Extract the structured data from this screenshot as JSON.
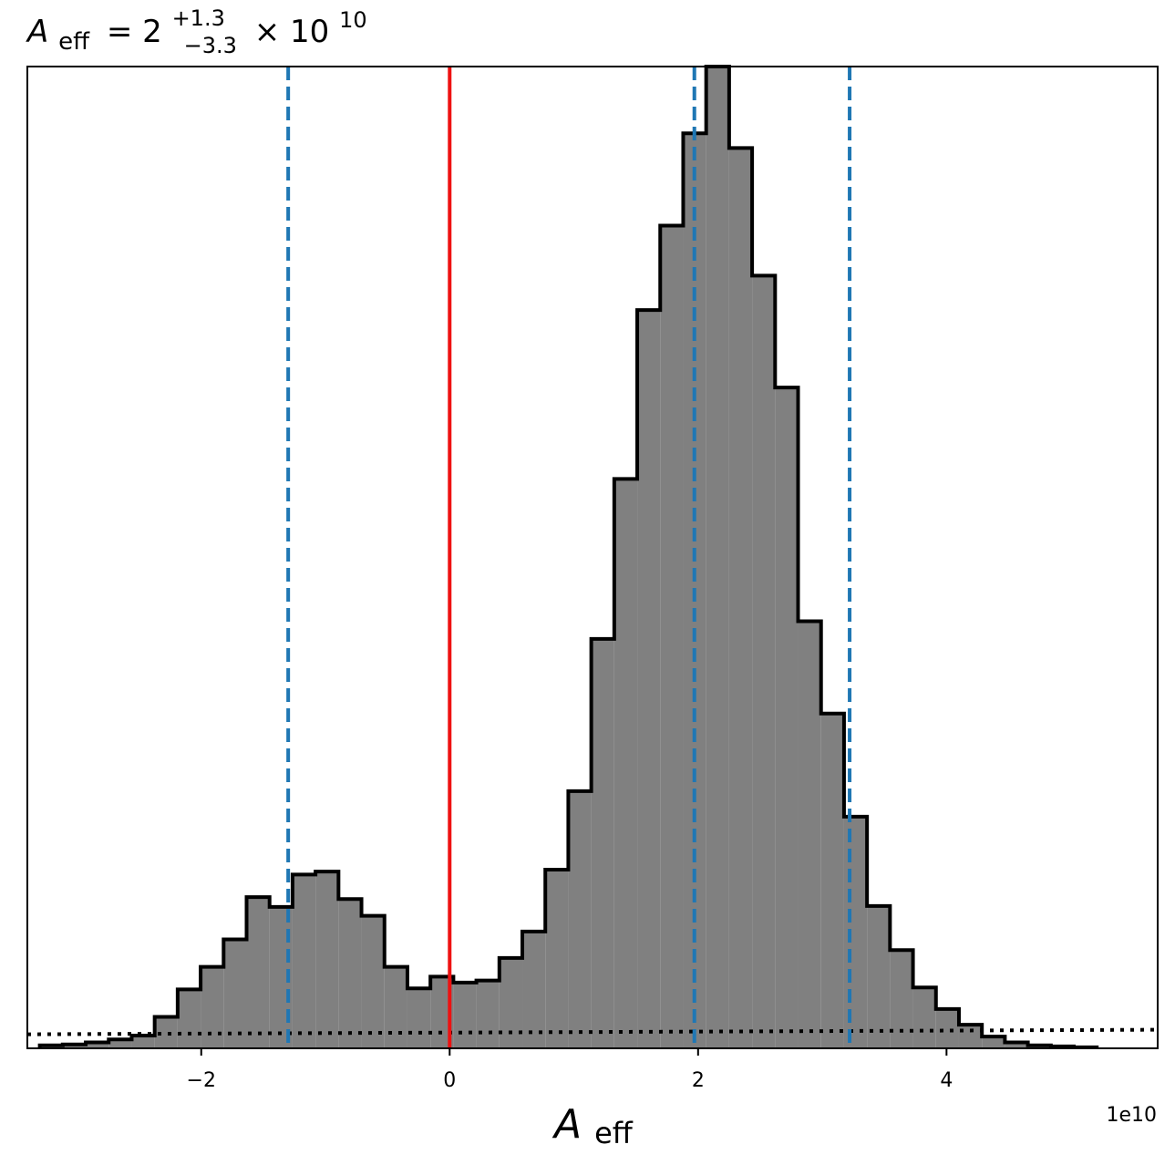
{
  "chart_data": {
    "type": "histogram",
    "title": {
      "symbol": "A",
      "subscript": "eff",
      "equals": "= 2",
      "upper": "+1.3",
      "lower": "−3.3",
      "times": "× 10",
      "exponent": "10"
    },
    "xlabel": {
      "symbol": "A",
      "subscript": "eff"
    },
    "ylabel": "",
    "x_offset_label": "1e10",
    "xlim": [
      -3.4,
      5.7
    ],
    "ylim": [
      0,
      1.0
    ],
    "x_unit_scale": 10000000000.0,
    "xticks": [
      {
        "value": -2,
        "label": "−2"
      },
      {
        "value": 0,
        "label": "0"
      },
      {
        "value": 2,
        "label": "2"
      },
      {
        "value": 4,
        "label": "4"
      }
    ],
    "bins": {
      "edges": [
        -3.3,
        -3.115,
        -2.93,
        -2.745,
        -2.56,
        -2.375,
        -2.19,
        -2.005,
        -1.82,
        -1.635,
        -1.45,
        -1.265,
        -1.08,
        -0.895,
        -0.71,
        -0.525,
        -0.34,
        -0.155,
        0.03,
        0.215,
        0.4,
        0.585,
        0.77,
        0.955,
        1.14,
        1.325,
        1.51,
        1.695,
        1.88,
        2.065,
        2.25,
        2.435,
        2.62,
        2.805,
        2.99,
        3.175,
        3.36,
        3.545,
        3.73,
        3.915,
        4.1,
        4.285,
        4.47,
        4.655,
        4.84,
        5.025,
        5.21
      ],
      "counts": [
        0.003,
        0.004,
        0.006,
        0.009,
        0.013,
        0.032,
        0.06,
        0.083,
        0.111,
        0.154,
        0.144,
        0.177,
        0.18,
        0.152,
        0.135,
        0.083,
        0.061,
        0.073,
        0.067,
        0.069,
        0.092,
        0.119,
        0.182,
        0.262,
        0.417,
        0.58,
        0.752,
        0.838,
        0.932,
        1.0,
        0.917,
        0.787,
        0.673,
        0.435,
        0.341,
        0.236,
        0.145,
        0.1,
        0.062,
        0.04,
        0.024,
        0.012,
        0.006,
        0.003,
        0.002,
        0.001
      ],
      "fill": "#808080",
      "edge": "#000000"
    },
    "lines": [
      {
        "kind": "reference",
        "x": 0,
        "color": "#ee1111",
        "style": "solid"
      },
      {
        "kind": "quantile-lower",
        "x": -1.3,
        "color": "#1f77b4",
        "style": "dashed"
      },
      {
        "kind": "median",
        "x": 1.97,
        "color": "#1f77b4",
        "style": "dashed"
      },
      {
        "kind": "quantile-upper",
        "x": 3.22,
        "color": "#1f77b4",
        "style": "dashed"
      }
    ],
    "prior": {
      "y": 0.018,
      "color": "#000000",
      "style": "dotted"
    },
    "grid": false,
    "legend": "none"
  }
}
